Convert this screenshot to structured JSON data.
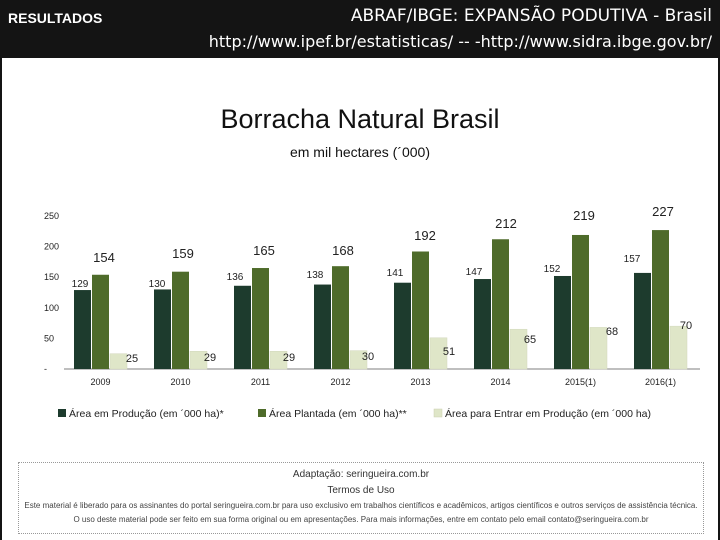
{
  "header": {
    "section_label": "RESULTADOS",
    "line1": "ABRAF/IBGE:  EXPANSÃO PODUTIVA -  Brasil",
    "line2": "http://www.ipef.br/estatisticas/ -- -http://www.sidra.ibge.gov.br/"
  },
  "chart_data": {
    "type": "bar",
    "title": "Borracha Natural Brasil",
    "subtitle": "em mil hectares (´000)",
    "categories": [
      "2009",
      "2010",
      "2011",
      "2012",
      "2013",
      "2014",
      "2015(1)",
      "2016(1)"
    ],
    "series": [
      {
        "name": "Área em Produção (em ´000 ha)*",
        "values": [
          129,
          130,
          136,
          138,
          141,
          147,
          152,
          157
        ],
        "color": "#1d3b2d"
      },
      {
        "name": "Área Plantada (em ´000 ha)**",
        "values": [
          154,
          159,
          165,
          168,
          192,
          212,
          219,
          227
        ],
        "color": "#4e6b2a"
      },
      {
        "name": "Área para Entrar em Produção (em ´000 ha)",
        "values": [
          25,
          29,
          29,
          30,
          51,
          65,
          68,
          70
        ],
        "color": "#dfe6c8"
      }
    ],
    "y_ticks": [
      "250",
      "200",
      "150",
      "100",
      "50",
      "-"
    ],
    "ylim": [
      0,
      250
    ],
    "grid": false,
    "legend_position": "bottom"
  },
  "footer": {
    "credit": "Adaptação: seringueira.com.br",
    "terms_title": "Termos de Uso",
    "terms_line1": "Este material é liberado para os assinantes do portal seringueira.com.br para uso exclusivo em trabalhos científicos e acadêmicos, artigos científicos e outros serviços de assistência técnica.",
    "terms_line2": "O uso deste material pode ser feito em sua forma original ou em apresentações. Para mais informações, entre em contato pelo email contato@seringueira.com.br"
  }
}
